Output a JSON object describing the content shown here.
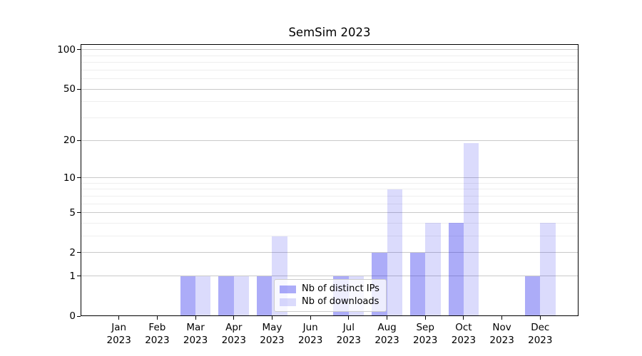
{
  "title": "SemSim 2023",
  "chart_data": {
    "type": "bar",
    "title": "SemSim 2023",
    "categories": [
      "Jan 2023",
      "Feb 2023",
      "Mar 2023",
      "Apr 2023",
      "May 2023",
      "Jun 2023",
      "Jul 2023",
      "Aug 2023",
      "Sep 2023",
      "Oct 2023",
      "Nov 2023",
      "Dec 2023"
    ],
    "series": [
      {
        "name": "Nb of distinct IPs",
        "color": "rgba(30,30,235,0.37)",
        "values": [
          0,
          0,
          1,
          1,
          1,
          0,
          1,
          2,
          2,
          4,
          0,
          1
        ]
      },
      {
        "name": "Nb of downloads",
        "color": "rgba(30,30,235,0.16)",
        "values": [
          0,
          0,
          1,
          1,
          3,
          0,
          1,
          8,
          4,
          19,
          0,
          4
        ]
      }
    ],
    "xlabel": "",
    "ylabel": "",
    "y_scale": "log1p",
    "ylim": [
      0,
      110
    ],
    "y_major_ticks": [
      0,
      1,
      2,
      5,
      10,
      20,
      50,
      100
    ],
    "y_minor_ticks": [
      3,
      4,
      6,
      7,
      8,
      9,
      30,
      40,
      60,
      70,
      80,
      90
    ],
    "grid": "on",
    "legend_position": "lower center",
    "colors": {
      "axis": "#000000",
      "major_grid": "#c9c9c9",
      "minor_grid": "#eeeeee",
      "background": "#ffffff"
    }
  }
}
